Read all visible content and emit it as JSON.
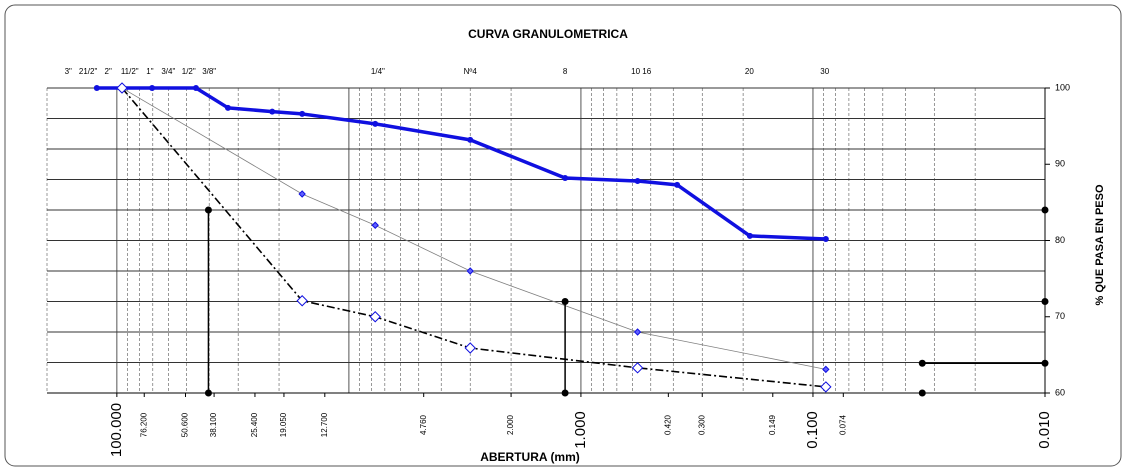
{
  "chart_data": {
    "type": "line",
    "title": "CURVA GRANULOMETRICA",
    "x_label": "ABERTURA (mm)",
    "y_label": "% QUE PASA EN PESO",
    "xscale": "log",
    "xlim": [
      200,
      0.01
    ],
    "ylim": [
      60,
      100
    ],
    "yticks": [
      60,
      70,
      80,
      90,
      100
    ],
    "ygrid": [
      60,
      64,
      68,
      72,
      76,
      80,
      84,
      88,
      92,
      96,
      100
    ],
    "grid": true,
    "xticks": [
      {
        "value": 100,
        "label": "100.000"
      },
      {
        "value": 76.2,
        "label": "76.200"
      },
      {
        "value": 50.6,
        "label": "50.600"
      },
      {
        "value": 38.1,
        "label": "38.100"
      },
      {
        "value": 25.4,
        "label": "25.400"
      },
      {
        "value": 19.05,
        "label": "19.050"
      },
      {
        "value": 12.7,
        "label": "12.700"
      },
      {
        "value": 4.76,
        "label": "4.760"
      },
      {
        "value": 2,
        "label": "2.000"
      },
      {
        "value": 1,
        "label": "1.000"
      },
      {
        "value": 0.42,
        "label": "0.420"
      },
      {
        "value": 0.3,
        "label": "0.300"
      },
      {
        "value": 0.149,
        "label": "0.149"
      },
      {
        "value": 0.1,
        "label": "0.100"
      },
      {
        "value": 0.074,
        "label": "0.074"
      },
      {
        "value": 0.01,
        "label": "0.010"
      }
    ],
    "top_labels": [
      {
        "value": 162,
        "label": "3\""
      },
      {
        "value": 133,
        "label": "21/2\""
      },
      {
        "value": 109,
        "label": "2\""
      },
      {
        "value": 88,
        "label": "11/2\""
      },
      {
        "value": 72,
        "label": "1\""
      },
      {
        "value": 60,
        "label": "3/4\""
      },
      {
        "value": 49,
        "label": "1/2\""
      },
      {
        "value": 40,
        "label": "3/8\""
      },
      {
        "value": 7.5,
        "label": "1/4\""
      },
      {
        "value": 3.0,
        "label": "Nº4"
      },
      {
        "value": 1.17,
        "label": "8"
      },
      {
        "value": 0.55,
        "label": "10 16"
      },
      {
        "value": 0.188,
        "label": "20"
      },
      {
        "value": 0.089,
        "label": "30"
      }
    ],
    "series": [
      {
        "color": "#1010e0",
        "line_width": 3.5,
        "dash": "none",
        "marker": "dot",
        "x": [
          122,
          95,
          70.5,
          45.6,
          33.2,
          21.4,
          15.9,
          7.7,
          3.0,
          1.17,
          0.57,
          0.385,
          0.187,
          0.088
        ],
        "values": [
          100,
          100,
          100,
          100,
          97.4,
          96.9,
          96.6,
          95.3,
          93.2,
          88.2,
          87.8,
          87.3,
          80.6,
          80.2
        ]
      },
      {
        "color": "#808080",
        "line_width": 0.8,
        "dash": "none",
        "marker": "small-diamond",
        "x": [
          95,
          15.9,
          7.7,
          3.0,
          0.57,
          0.088
        ],
        "values": [
          100,
          86.1,
          82.0,
          76.0,
          68.0,
          63.1
        ]
      },
      {
        "color": "#000000",
        "line_width": 1.6,
        "dash": "8 3 2 3",
        "marker": "open-diamond",
        "x": [
          95,
          15.9,
          7.7,
          3.0,
          0.57,
          0.088
        ],
        "values": [
          100,
          72.1,
          70.0,
          65.9,
          63.3,
          60.8
        ]
      },
      {
        "color": "#000000",
        "line_width": 1.5,
        "dash": "none",
        "marker": "black-dot",
        "x": [
          40.3,
          40.3
        ],
        "values": [
          84,
          60
        ]
      },
      {
        "color": "#000000",
        "line_width": 1.5,
        "dash": "none",
        "marker": "black-dot",
        "x": [
          1.17,
          1.17
        ],
        "values": [
          72,
          60
        ]
      },
      {
        "color": "#000000",
        "line_width": 1.5,
        "dash": "none",
        "marker": "black-dot",
        "x": [
          0.0338,
          0.01
        ],
        "values": [
          63.9,
          63.9
        ]
      },
      {
        "color": "#000000",
        "line_width": 0,
        "dash": "none",
        "marker": "black-dot",
        "x": [
          0.01,
          0.01,
          0.0338
        ],
        "values": [
          84,
          72,
          60
        ]
      }
    ]
  }
}
